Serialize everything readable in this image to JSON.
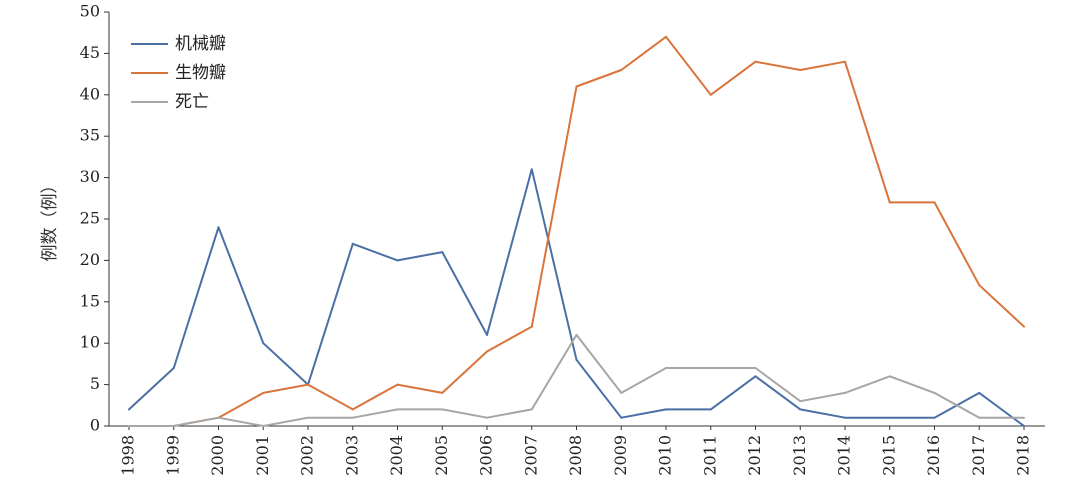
{
  "chart_data": {
    "type": "line",
    "title": "",
    "xlabel": "",
    "ylabel": "例数（例）",
    "ylim": [
      0,
      50
    ],
    "yticks": [
      0,
      5,
      10,
      15,
      20,
      25,
      30,
      35,
      40,
      45,
      50
    ],
    "grid": false,
    "legend_position": "top-left",
    "categories": [
      "1998",
      "1999",
      "2000",
      "2001",
      "2002",
      "2003",
      "2004",
      "2005",
      "2006",
      "2007",
      "2008",
      "2009",
      "2010",
      "2011",
      "2012",
      "2013",
      "2014",
      "2015",
      "2016",
      "2017",
      "2018"
    ],
    "series": [
      {
        "name": "机械瓣",
        "color": "#4a6fa5",
        "values": [
          2,
          7,
          24,
          10,
          5,
          22,
          20,
          21,
          11,
          31,
          8,
          1,
          2,
          2,
          6,
          2,
          1,
          1,
          1,
          4,
          0
        ]
      },
      {
        "name": "生物瓣",
        "color": "#d9743a",
        "values": [
          0,
          0,
          1,
          4,
          5,
          2,
          5,
          4,
          9,
          12,
          41,
          43,
          47,
          40,
          44,
          43,
          44,
          27,
          27,
          17,
          12
        ]
      },
      {
        "name": "死亡",
        "color": "#a6a6a6",
        "values": [
          0,
          0,
          1,
          0,
          1,
          1,
          2,
          2,
          1,
          2,
          11,
          4,
          7,
          7,
          7,
          3,
          4,
          6,
          4,
          1,
          1
        ]
      }
    ]
  }
}
